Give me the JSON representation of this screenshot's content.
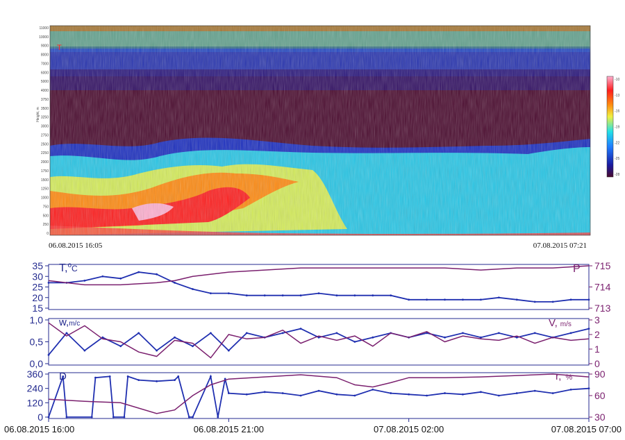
{
  "colors": {
    "temperature": "#1f2fb0",
    "pressure": "#7a1f6e",
    "wind_speed": "#1f2fb0",
    "wind_v": "#7a1f6e",
    "wind_dir": "#1f2fb0",
    "humidity": "#7a1f6e",
    "axis": "#232a8f"
  },
  "labels": {
    "heatmap_start": "06.08.2015  16:05",
    "heatmap_end": "07.08.2015  07:21",
    "heatmap_ylabel": "Height, m",
    "t_label": "T,",
    "t_sup": "o",
    "t_unit": "C",
    "p_label": "P",
    "w_label": "w,",
    "w_unit": "m/c",
    "v_label": "V,",
    "v_unit": "m/s",
    "d_label": "D",
    "r_label": "r,",
    "r_unit": "%",
    "corner_mark": "T"
  },
  "chart_data": [
    {
      "type": "heatmap",
      "title": "",
      "ylabel": "Height, m",
      "y_ticks": [
        "0",
        "250",
        "500",
        "750",
        "1000",
        "1250",
        "1500",
        "1750",
        "2000",
        "2250",
        "2500",
        "2750",
        "3000",
        "3250",
        "3500",
        "3750",
        "4000",
        "5000",
        "6000",
        "7000",
        "8000",
        "9000",
        "10000",
        "11000"
      ],
      "x_range": [
        "06.08.2015 16:05",
        "07.08.2015 07:21"
      ],
      "colorbar_ticks": [
        "-10",
        "-13",
        "-16",
        "-19",
        "-22",
        "-25",
        "-28"
      ],
      "colormap": [
        "#4a0a2e",
        "#1a1aa0",
        "#1f7dff",
        "#22e0e8",
        "#f0f040",
        "#ff8a10",
        "#ff1e1e",
        "#ffb0d0"
      ]
    },
    {
      "type": "line",
      "x_ticks": [
        "06.08.2015 16:00",
        "06.08.2015 21:00",
        "07.08.2015 02:00",
        "07.08.2015 07:00"
      ],
      "x_range_hours": [
        16,
        31
      ],
      "left_axis": {
        "label": "T, oC",
        "ylim": [
          15,
          35
        ],
        "ticks": [
          "15",
          "20",
          "25",
          "30",
          "35"
        ]
      },
      "right_axis": {
        "label": "P",
        "ylim": [
          713,
          715
        ],
        "ticks": [
          "713",
          "714",
          "715"
        ]
      },
      "series": [
        {
          "name": "T, oC",
          "axis": "left",
          "x": [
            16,
            16.5,
            17,
            17.5,
            18,
            18.5,
            19,
            19.5,
            20,
            20.5,
            21,
            21.5,
            22,
            22.5,
            23,
            23.5,
            24,
            24.5,
            25,
            25.5,
            26,
            26.5,
            27,
            27.5,
            28,
            28.5,
            29,
            29.5,
            30,
            30.5,
            31
          ],
          "y": [
            27,
            27,
            28,
            30,
            29,
            32,
            31,
            27,
            24,
            22,
            22,
            21,
            21,
            21,
            21,
            22,
            21,
            21,
            21,
            21,
            19,
            19,
            19,
            19,
            19,
            20,
            19,
            18,
            18,
            19,
            19
          ]
        },
        {
          "name": "P",
          "axis": "right",
          "x": [
            16,
            17,
            18,
            19,
            19.5,
            20,
            21,
            22,
            23,
            24,
            25,
            26,
            27,
            28,
            29,
            30,
            31
          ],
          "y": [
            714.3,
            714.1,
            714.1,
            714.2,
            714.3,
            714.5,
            714.7,
            714.8,
            714.9,
            714.9,
            714.9,
            714.9,
            714.9,
            714.8,
            714.9,
            714.9,
            715.0
          ]
        }
      ]
    },
    {
      "type": "line",
      "x_range_hours": [
        16,
        31
      ],
      "left_axis": {
        "label": "w, m/c",
        "ylim": [
          0,
          1.0
        ],
        "ticks": [
          "0,0",
          "0,5",
          "1,0"
        ]
      },
      "right_axis": {
        "label": "V, m/s",
        "ylim": [
          0,
          3
        ],
        "ticks": [
          "0",
          "1",
          "2",
          "3"
        ]
      },
      "series": [
        {
          "name": "w, m/c",
          "axis": "left",
          "x": [
            16,
            16.5,
            17,
            17.5,
            18,
            18.5,
            19,
            19.5,
            20,
            20.5,
            21,
            21.5,
            22,
            22.5,
            23,
            23.5,
            24,
            24.5,
            25,
            25.5,
            26,
            26.5,
            27,
            27.5,
            28,
            28.5,
            29,
            29.5,
            30,
            30.5,
            31
          ],
          "y": [
            0.2,
            0.7,
            0.3,
            0.6,
            0.4,
            0.7,
            0.3,
            0.6,
            0.4,
            0.7,
            0.3,
            0.7,
            0.6,
            0.7,
            0.8,
            0.6,
            0.7,
            0.5,
            0.6,
            0.7,
            0.6,
            0.7,
            0.6,
            0.7,
            0.6,
            0.7,
            0.6,
            0.7,
            0.6,
            0.7,
            0.8
          ]
        },
        {
          "name": "V, m/s",
          "axis": "right",
          "x": [
            16,
            16.5,
            17,
            17.5,
            18,
            18.5,
            19,
            19.5,
            20,
            20.5,
            21,
            21.5,
            22,
            22.5,
            23,
            23.5,
            24,
            24.5,
            25,
            25.5,
            26,
            26.5,
            27,
            27.5,
            28,
            28.5,
            29,
            29.5,
            30,
            30.5,
            31
          ],
          "y": [
            2.8,
            1.9,
            2.6,
            1.7,
            1.5,
            0.8,
            0.5,
            1.6,
            1.4,
            0.4,
            2.0,
            1.7,
            1.8,
            2.3,
            1.4,
            1.9,
            1.6,
            1.9,
            1.2,
            2.1,
            1.8,
            2.2,
            1.5,
            1.9,
            1.7,
            1.6,
            1.9,
            1.4,
            1.8,
            1.6,
            1.7
          ]
        }
      ]
    },
    {
      "type": "line",
      "x_range_hours": [
        16,
        31
      ],
      "left_axis": {
        "label": "D",
        "ylim": [
          0,
          360
        ],
        "ticks": [
          "0",
          "120",
          "240",
          "360"
        ]
      },
      "right_axis": {
        "label": "r, %",
        "ylim": [
          30,
          90
        ],
        "ticks": [
          "30",
          "60",
          "90"
        ]
      },
      "series": [
        {
          "name": "D",
          "axis": "left",
          "x": [
            16,
            16.4,
            16.5,
            17.2,
            17.3,
            17.7,
            17.8,
            18.1,
            18.2,
            18.5,
            19,
            19.5,
            19.6,
            19.9,
            20,
            20.5,
            20.7,
            20.9,
            21,
            21.5,
            22,
            22.5,
            23,
            23.5,
            24,
            24.5,
            25,
            25.5,
            26,
            26.5,
            27,
            27.5,
            28,
            28.5,
            29,
            29.5,
            30,
            30.5,
            31
          ],
          "y": [
            0,
            340,
            0,
            0,
            330,
            340,
            0,
            0,
            340,
            310,
            300,
            310,
            340,
            0,
            0,
            340,
            0,
            320,
            200,
            190,
            210,
            200,
            180,
            220,
            190,
            180,
            230,
            200,
            190,
            180,
            200,
            190,
            210,
            180,
            200,
            220,
            200,
            230,
            240
          ]
        },
        {
          "name": "r, %",
          "axis": "right",
          "x": [
            16,
            17,
            18,
            19,
            19.5,
            20,
            20.5,
            21,
            22,
            23,
            24,
            24.5,
            25,
            25.5,
            26,
            27,
            28,
            29,
            30,
            31
          ],
          "y": [
            55,
            52,
            50,
            35,
            40,
            60,
            75,
            83,
            86,
            89,
            85,
            75,
            72,
            78,
            85,
            85,
            86,
            88,
            90,
            86
          ]
        }
      ]
    }
  ]
}
